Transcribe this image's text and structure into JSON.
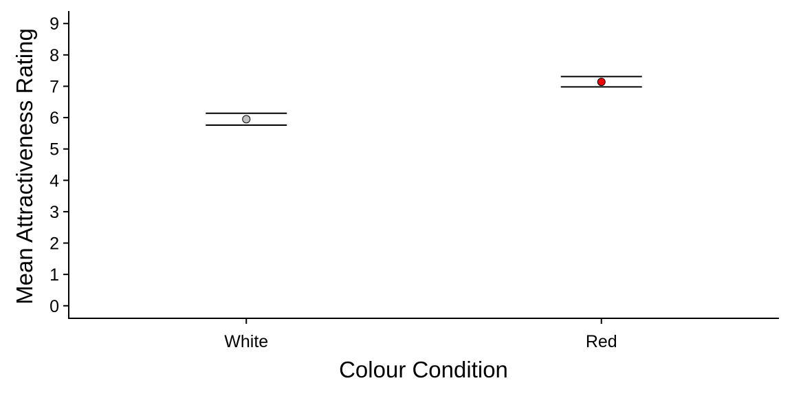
{
  "chart_data": {
    "type": "scatter",
    "title": "",
    "xlabel": "Colour Condition",
    "ylabel": "Mean Attractiveness Rating",
    "categories": [
      "White",
      "Red"
    ],
    "ylim": [
      -0.4,
      9.4
    ],
    "yticks": [
      "0",
      "1",
      "2",
      "3",
      "4",
      "5",
      "6",
      "7",
      "8",
      "9"
    ],
    "grid": false,
    "legend": "none",
    "points": [
      {
        "category": "White",
        "mean": 5.95,
        "lower": 5.76,
        "upper": 6.14,
        "color": "#c0c0c0"
      },
      {
        "category": "Red",
        "mean": 7.14,
        "lower": 6.98,
        "upper": 7.31,
        "color": "#ee0000"
      }
    ]
  }
}
